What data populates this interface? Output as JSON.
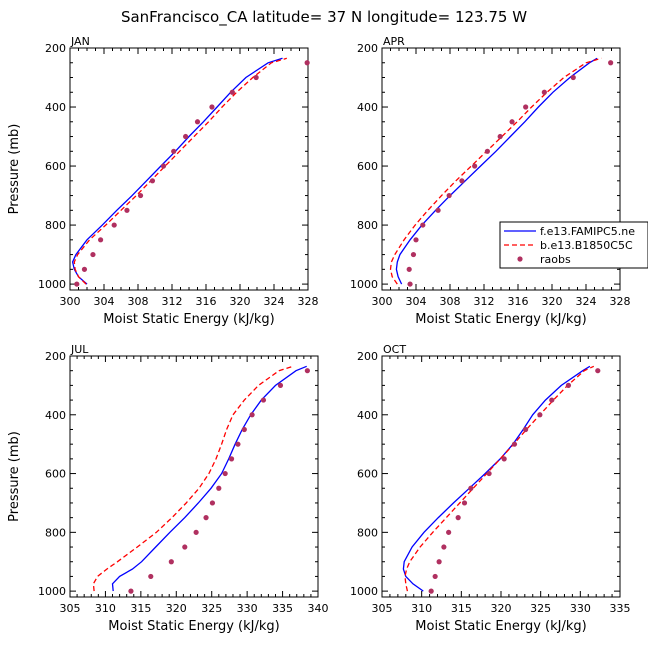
{
  "figure": {
    "title": "SanFrancisco_CA  latitude= 37 N longitude= 123.75 W",
    "colors": {
      "model1": "#0000ff",
      "model2": "#ff0000",
      "obs": "#b03060"
    }
  },
  "legend": {
    "entries": [
      {
        "label": "f.e13.FAMIPC5.ne",
        "style": "solid"
      },
      {
        "label": "b.e13.B1850C5C",
        "style": "dashed"
      },
      {
        "label": "raobs",
        "style": "dots"
      }
    ]
  },
  "chart_data": [
    {
      "type": "line",
      "title": "JAN",
      "xlabel": "Moist Static Energy (kJ/kg)",
      "ylabel": "Pressure (mb)",
      "xlim": [
        300,
        328
      ],
      "ylim": [
        1020,
        200
      ],
      "xticks": [
        300,
        304,
        308,
        312,
        316,
        320,
        324,
        328
      ],
      "xminor": 1,
      "yticks": [
        200,
        400,
        600,
        800,
        1000
      ],
      "yminor": 50,
      "pressure": [
        1000,
        975,
        950,
        925,
        900,
        850,
        800,
        750,
        700,
        650,
        600,
        550,
        500,
        450,
        400,
        350,
        300,
        250,
        235
      ],
      "series": [
        {
          "name": "f.e13.FAMIPC5.ne",
          "x": [
            302.0,
            301.0,
            300.5,
            300.3,
            300.7,
            302.0,
            303.8,
            305.5,
            307.3,
            309.0,
            310.7,
            312.4,
            314.0,
            315.7,
            317.3,
            318.9,
            320.7,
            323.3,
            325.0
          ]
        },
        {
          "name": "b.e13.B1850C5C",
          "x": [
            301.9,
            301.0,
            300.6,
            300.5,
            300.9,
            302.3,
            304.2,
            306.0,
            307.8,
            309.5,
            311.2,
            312.9,
            314.6,
            316.3,
            317.9,
            319.6,
            321.5,
            323.7,
            325.5
          ]
        },
        {
          "name": "raobs",
          "style": "dots",
          "p": [
            1000,
            950,
            900,
            850,
            800,
            750,
            700,
            650,
            600,
            550,
            500,
            450,
            400,
            350,
            300,
            250
          ],
          "x": [
            300.8,
            301.7,
            302.7,
            303.6,
            305.2,
            306.7,
            308.3,
            309.7,
            311.0,
            312.2,
            313.6,
            315.0,
            316.7,
            319.1,
            321.9,
            327.9
          ]
        }
      ]
    },
    {
      "type": "line",
      "title": "APR",
      "xlabel": "Moist Static Energy (kJ/kg)",
      "ylabel": "",
      "xlim": [
        300,
        328
      ],
      "ylim": [
        1020,
        200
      ],
      "xticks": [
        300,
        304,
        308,
        312,
        316,
        320,
        324,
        328
      ],
      "xminor": 1,
      "yticks": [
        200,
        400,
        600,
        800,
        1000
      ],
      "yminor": 50,
      "pressure": [
        1000,
        975,
        950,
        925,
        900,
        850,
        800,
        750,
        700,
        650,
        600,
        550,
        500,
        450,
        400,
        350,
        300,
        250,
        235
      ],
      "series": [
        {
          "name": "f.e13.FAMIPC5.ne",
          "x": [
            302.3,
            301.9,
            301.7,
            301.8,
            302.1,
            303.3,
            304.7,
            306.3,
            308.0,
            309.8,
            311.6,
            313.4,
            315.1,
            316.8,
            318.4,
            320.1,
            322.1,
            324.4,
            325.3
          ]
        },
        {
          "name": "b.e13.B1850C5C",
          "x": [
            301.8,
            301.2,
            301.0,
            301.1,
            301.5,
            302.6,
            303.9,
            305.4,
            307.0,
            308.7,
            310.5,
            312.3,
            314.1,
            315.9,
            317.6,
            319.4,
            321.4,
            324.0,
            325.8
          ]
        },
        {
          "name": "raobs",
          "style": "dots",
          "p": [
            1000,
            950,
            900,
            850,
            800,
            750,
            700,
            650,
            600,
            550,
            500,
            450,
            400,
            350,
            300,
            250
          ],
          "x": [
            303.3,
            303.2,
            303.7,
            304.0,
            304.8,
            306.6,
            307.9,
            309.4,
            310.9,
            312.4,
            313.9,
            315.3,
            316.9,
            319.1,
            322.5,
            326.9
          ]
        }
      ]
    },
    {
      "type": "line",
      "title": "JUL",
      "xlabel": "Moist Static Energy (kJ/kg)",
      "ylabel": "Pressure (mb)",
      "xlim": [
        305,
        340
      ],
      "ylim": [
        1020,
        200
      ],
      "xticks": [
        305,
        310,
        315,
        320,
        325,
        330,
        335,
        340
      ],
      "xminor": 1,
      "yticks": [
        200,
        400,
        600,
        800,
        1000
      ],
      "yminor": 50,
      "pressure": [
        1000,
        975,
        950,
        925,
        900,
        850,
        800,
        750,
        700,
        650,
        600,
        550,
        500,
        450,
        400,
        350,
        300,
        250,
        235
      ],
      "series": [
        {
          "name": "f.e13.FAMIPC5.ne",
          "x": [
            311.1,
            311.0,
            312.0,
            313.8,
            315.1,
            317.1,
            319.1,
            321.2,
            323.1,
            324.9,
            326.4,
            327.4,
            328.3,
            329.3,
            330.5,
            332.0,
            334.0,
            336.9,
            338.4
          ]
        },
        {
          "name": "b.e13.B1850C5C",
          "x": [
            308.4,
            308.3,
            308.9,
            310.2,
            311.7,
            314.5,
            317.2,
            319.4,
            321.4,
            323.2,
            324.6,
            325.6,
            326.4,
            327.1,
            328.0,
            329.6,
            331.6,
            334.5,
            336.5
          ]
        },
        {
          "name": "raobs",
          "style": "dots",
          "p": [
            1000,
            950,
            900,
            850,
            800,
            750,
            700,
            650,
            600,
            550,
            500,
            450,
            400,
            350,
            300,
            250
          ],
          "x": [
            313.6,
            316.4,
            319.3,
            321.2,
            322.8,
            324.2,
            325.1,
            326.0,
            326.9,
            327.8,
            328.7,
            329.6,
            330.7,
            332.3,
            334.7,
            338.5
          ]
        }
      ]
    },
    {
      "type": "line",
      "title": "OCT",
      "xlabel": "Moist Static Energy (kJ/kg)",
      "ylabel": "",
      "xlim": [
        305,
        335
      ],
      "ylim": [
        1020,
        200
      ],
      "xticks": [
        305,
        310,
        315,
        320,
        325,
        330,
        335
      ],
      "xminor": 1,
      "yticks": [
        200,
        400,
        600,
        800,
        1000
      ],
      "yminor": 50,
      "pressure": [
        1000,
        975,
        950,
        925,
        900,
        850,
        800,
        750,
        700,
        650,
        600,
        550,
        500,
        450,
        400,
        350,
        300,
        250,
        235
      ],
      "series": [
        {
          "name": "f.e13.FAMIPC5.ne",
          "x": [
            310.2,
            308.9,
            308.0,
            307.7,
            307.8,
            308.8,
            310.3,
            312.1,
            314.0,
            316.0,
            318.0,
            319.9,
            321.5,
            322.8,
            324.0,
            325.6,
            327.6,
            330.3,
            331.2
          ]
        },
        {
          "name": "b.e13.B1850C5C",
          "x": [
            308.2,
            308.0,
            307.9,
            308.1,
            308.5,
            309.8,
            311.4,
            313.1,
            314.8,
            316.5,
            318.2,
            319.9,
            321.6,
            323.2,
            324.9,
            326.6,
            328.4,
            330.5,
            331.7
          ]
        },
        {
          "name": "raobs",
          "style": "dots",
          "p": [
            1000,
            950,
            900,
            850,
            800,
            750,
            700,
            650,
            600,
            550,
            500,
            450,
            400,
            350,
            300,
            250
          ],
          "x": [
            311.2,
            311.7,
            312.2,
            312.8,
            313.4,
            314.6,
            315.4,
            316.2,
            318.5,
            320.4,
            321.7,
            323.1,
            324.9,
            326.4,
            328.5,
            332.2
          ]
        }
      ]
    }
  ]
}
